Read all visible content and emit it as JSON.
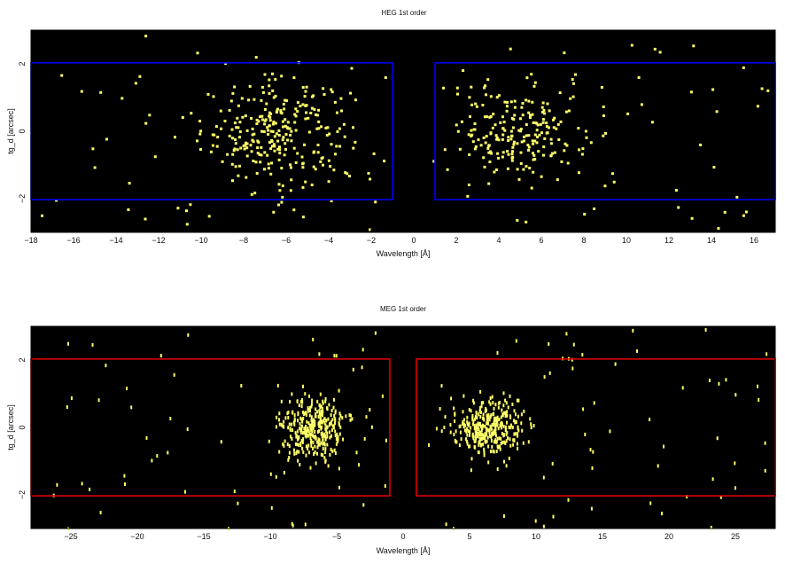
{
  "chart_data": [
    {
      "type": "heatmap",
      "title": "HEG 1st order",
      "xlabel": "Wavelength [Å]",
      "ylabel": "tg_d [arcsec]",
      "xlim": [
        -18,
        17
      ],
      "ylim": [
        -3,
        3
      ],
      "xticks": [
        -18,
        -16,
        -14,
        -12,
        -10,
        -8,
        -6,
        -4,
        -2,
        0,
        2,
        4,
        6,
        8,
        10,
        12,
        14,
        16
      ],
      "yticks": [
        -2,
        0,
        2
      ],
      "background_color": "#000000",
      "point_color": "#ffff66",
      "region_color": "#0000ee",
      "regions": [
        {
          "x": [
            -18,
            -1
          ],
          "y": [
            -2.03,
            2.03
          ]
        },
        {
          "x": [
            1,
            17
          ],
          "y": [
            -2.03,
            2.03
          ]
        }
      ],
      "clusters": [
        {
          "x_center": -6.5,
          "x_spread": 3.2,
          "y_spread": 1.0,
          "count": 260
        },
        {
          "x_center": 5.0,
          "x_spread": 2.6,
          "y_spread": 0.9,
          "count": 200
        }
      ],
      "background_events": 110
    },
    {
      "type": "heatmap",
      "title": "MEG 1st order",
      "xlabel": "Wavelength [Å]",
      "ylabel": "tg_d [arcsec]",
      "xlim": [
        -28,
        28
      ],
      "ylim": [
        -3,
        3
      ],
      "xticks": [
        -25,
        -20,
        -15,
        -10,
        -5,
        0,
        5,
        10,
        15,
        20,
        25
      ],
      "yticks": [
        -2,
        0,
        2
      ],
      "background_color": "#000000",
      "point_color": "#ffff66",
      "region_color": "#dd0000",
      "regions": [
        {
          "x": [
            -28,
            -1
          ],
          "y": [
            -2.03,
            2.03
          ]
        },
        {
          "x": [
            1,
            28
          ],
          "y": [
            -2.03,
            2.03
          ]
        }
      ],
      "clusters": [
        {
          "x_center": -6.8,
          "x_spread": 2.2,
          "y_spread": 0.6,
          "count": 320
        },
        {
          "x_center": 6.3,
          "x_spread": 2.4,
          "y_spread": 0.6,
          "count": 330
        }
      ],
      "background_events": 120
    }
  ]
}
